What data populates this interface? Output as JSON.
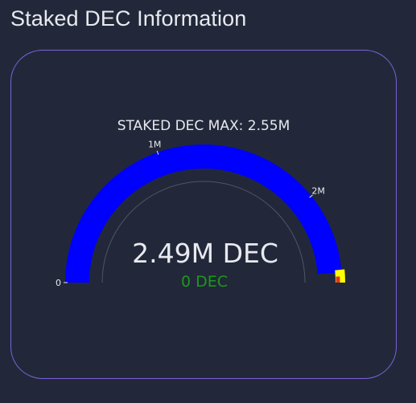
{
  "page": {
    "title": "Staked DEC Information"
  },
  "gauge": {
    "header": "STAKED DEC MAX: 2.55M",
    "value_text": "2.49M DEC",
    "sub_value_text": "0 DEC",
    "min": 0,
    "max": 2550000,
    "value": 2490000,
    "ticks": [
      {
        "label": "0",
        "value": 0
      },
      {
        "label": "1M",
        "value": 1000000
      },
      {
        "label": "2M",
        "value": 2000000
      }
    ],
    "bands": [
      {
        "from": 2490000,
        "to": 2550000,
        "color": "#ffff00"
      },
      {
        "from": 2530000,
        "to": 2550000,
        "color": "#d63a2a"
      }
    ],
    "colors": {
      "value_fill": "#0000ff",
      "value_text": "#e8eaf0",
      "sub_value_text": "#1a9a1a",
      "outline": "#4f5566",
      "card_border": "#7b61d8"
    }
  }
}
